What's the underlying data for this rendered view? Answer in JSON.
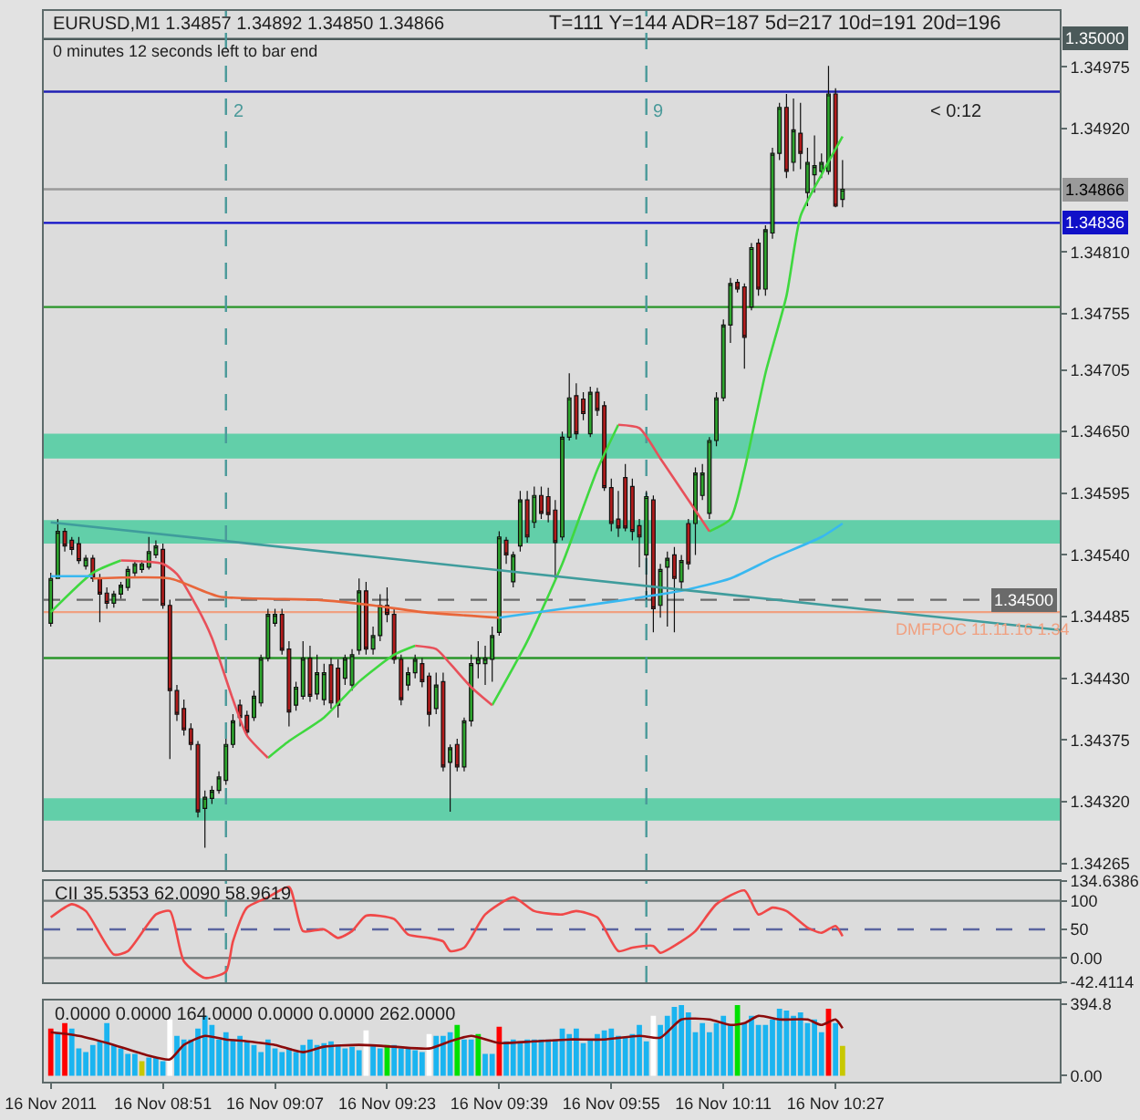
{
  "chart_data": [
    {
      "type": "candlestick",
      "title": "EURUSD,M1 1.34857 1.34892 1.34850 1.34866",
      "subtitle": "0 minutes 12 seconds left to bar end",
      "annotations": [
        "T=111 Y=144 ADR=187 5d=217 10d=191 20d=196",
        "< 0:12",
        {
          "text": "DMFPOC 11.11.16 1.34",
          "x": "2011-11-16T10:35",
          "y": 1.34485
        }
      ],
      "x": [
        "2011-11-16T08:35",
        "2011-11-16T08:36",
        "2011-11-16T08:37",
        "2011-11-16T08:38",
        "2011-11-16T08:39",
        "2011-11-16T08:40",
        "2011-11-16T08:41",
        "2011-11-16T08:42",
        "2011-11-16T08:43",
        "2011-11-16T08:44",
        "2011-11-16T08:45",
        "2011-11-16T08:46",
        "2011-11-16T08:47",
        "2011-11-16T08:48",
        "2011-11-16T08:49",
        "2011-11-16T08:50",
        "2011-11-16T08:51",
        "2011-11-16T08:52",
        "2011-11-16T08:53",
        "2011-11-16T08:54",
        "2011-11-16T08:55",
        "2011-11-16T08:56",
        "2011-11-16T08:57",
        "2011-11-16T08:58",
        "2011-11-16T08:59",
        "2011-11-16T09:00",
        "2011-11-16T09:01",
        "2011-11-16T09:02",
        "2011-11-16T09:03",
        "2011-11-16T09:04",
        "2011-11-16T09:05",
        "2011-11-16T09:06",
        "2011-11-16T09:07",
        "2011-11-16T09:08",
        "2011-11-16T09:09",
        "2011-11-16T09:10",
        "2011-11-16T09:11",
        "2011-11-16T09:12",
        "2011-11-16T09:13",
        "2011-11-16T09:14",
        "2011-11-16T09:15",
        "2011-11-16T09:16",
        "2011-11-16T09:17",
        "2011-11-16T09:18",
        "2011-11-16T09:19",
        "2011-11-16T09:20",
        "2011-11-16T09:21",
        "2011-11-16T09:22",
        "2011-11-16T09:23",
        "2011-11-16T09:24",
        "2011-11-16T09:25",
        "2011-11-16T09:26",
        "2011-11-16T09:27",
        "2011-11-16T09:28",
        "2011-11-16T09:29",
        "2011-11-16T09:30",
        "2011-11-16T09:31",
        "2011-11-16T09:32",
        "2011-11-16T09:33",
        "2011-11-16T09:34",
        "2011-11-16T09:35",
        "2011-11-16T09:36",
        "2011-11-16T09:37",
        "2011-11-16T09:38",
        "2011-11-16T09:39",
        "2011-11-16T09:40",
        "2011-11-16T09:41",
        "2011-11-16T09:42",
        "2011-11-16T09:43",
        "2011-11-16T09:44",
        "2011-11-16T09:45",
        "2011-11-16T09:46",
        "2011-11-16T09:47",
        "2011-11-16T09:48",
        "2011-11-16T09:49",
        "2011-11-16T09:50",
        "2011-11-16T09:51",
        "2011-11-16T09:52",
        "2011-11-16T09:53",
        "2011-11-16T09:54",
        "2011-11-16T09:55",
        "2011-11-16T09:56",
        "2011-11-16T09:57",
        "2011-11-16T09:58",
        "2011-11-16T09:59",
        "2011-11-16T10:00",
        "2011-11-16T10:01",
        "2011-11-16T10:02",
        "2011-11-16T10:03",
        "2011-11-16T10:04",
        "2011-11-16T10:05",
        "2011-11-16T10:06",
        "2011-11-16T10:07",
        "2011-11-16T10:08",
        "2011-11-16T10:09",
        "2011-11-16T10:10",
        "2011-11-16T10:11",
        "2011-11-16T10:12",
        "2011-11-16T10:13",
        "2011-11-16T10:14",
        "2011-11-16T10:15",
        "2011-11-16T10:16",
        "2011-11-16T10:17",
        "2011-11-16T10:18",
        "2011-11-16T10:19",
        "2011-11-16T10:20",
        "2011-11-16T10:21",
        "2011-11-16T10:22",
        "2011-11-16T10:23",
        "2011-11-16T10:24",
        "2011-11-16T10:25",
        "2011-11-16T10:26",
        "2011-11-16T10:27",
        "2011-11-16T10:28"
      ],
      "ohlc": [
        [
          1.34479,
          1.34524,
          1.34476,
          1.34519
        ],
        [
          1.34519,
          1.34572,
          1.34519,
          1.34561
        ],
        [
          1.34561,
          1.34564,
          1.34543,
          1.34548
        ],
        [
          1.34553,
          1.34556,
          1.3454,
          1.34545
        ],
        [
          1.3455,
          1.34556,
          1.34532,
          1.34535
        ],
        [
          1.3453,
          1.3454,
          1.34527,
          1.34537
        ],
        [
          1.34537,
          1.3454,
          1.34516,
          1.34519
        ],
        [
          1.34519,
          1.34523,
          1.3448,
          1.34505
        ],
        [
          1.34506,
          1.34511,
          1.34492,
          1.34497
        ],
        [
          1.34497,
          1.34508,
          1.34493,
          1.34505
        ],
        [
          1.34505,
          1.34516,
          1.34501,
          1.34513
        ],
        [
          1.34511,
          1.3453,
          1.34508,
          1.34527
        ],
        [
          1.34524,
          1.34535,
          1.34521,
          1.34532
        ],
        [
          1.34527,
          1.34535,
          1.34524,
          1.34532
        ],
        [
          1.34529,
          1.34556,
          1.34527,
          1.34543
        ],
        [
          1.3454,
          1.34553,
          1.34537,
          1.34548
        ],
        [
          1.34545,
          1.3455,
          1.34492,
          1.34495
        ],
        [
          1.34495,
          1.345,
          1.34358,
          1.34419
        ],
        [
          1.34419,
          1.34424,
          1.34392,
          1.34398
        ],
        [
          1.34403,
          1.34411,
          1.34379,
          1.34384
        ],
        [
          1.34385,
          1.3439,
          1.34366,
          1.34371
        ],
        [
          1.34371,
          1.34374,
          1.34306,
          1.34311
        ],
        [
          1.34314,
          1.3433,
          1.34279,
          1.34324
        ],
        [
          1.34323,
          1.34334,
          1.34318,
          1.3433
        ],
        [
          1.3433,
          1.34347,
          1.34327,
          1.34342
        ],
        [
          1.34339,
          1.34376,
          1.34335,
          1.34371
        ],
        [
          1.34371,
          1.34398,
          1.34368,
          1.34392
        ],
        [
          1.34406,
          1.34411,
          1.34387,
          1.34395
        ],
        [
          1.34397,
          1.34401,
          1.34379,
          1.34382
        ],
        [
          1.34395,
          1.34419,
          1.34392,
          1.34414
        ],
        [
          1.34408,
          1.34451,
          1.34405,
          1.34448
        ],
        [
          1.34448,
          1.34492,
          1.34445,
          1.34487
        ],
        [
          1.34479,
          1.34492,
          1.34476,
          1.34487
        ],
        [
          1.34487,
          1.34492,
          1.34451,
          1.34455
        ],
        [
          1.34456,
          1.34463,
          1.34387,
          1.344
        ],
        [
          1.34406,
          1.34427,
          1.34401,
          1.34422
        ],
        [
          1.34414,
          1.34463,
          1.34411,
          1.34448
        ],
        [
          1.34448,
          1.34459,
          1.34409,
          1.34414
        ],
        [
          1.34416,
          1.34451,
          1.34411,
          1.34435
        ],
        [
          1.34411,
          1.34443,
          1.34406,
          1.34435
        ],
        [
          1.34442,
          1.34448,
          1.34403,
          1.34408
        ],
        [
          1.34439,
          1.34447,
          1.34395,
          1.34406
        ],
        [
          1.3443,
          1.34451,
          1.34424,
          1.34448
        ],
        [
          1.34424,
          1.34456,
          1.34419,
          1.34451
        ],
        [
          1.34455,
          1.34519,
          1.34451,
          1.34508
        ],
        [
          1.34508,
          1.34516,
          1.34451,
          1.34456
        ],
        [
          1.34456,
          1.34476,
          1.34451,
          1.34468
        ],
        [
          1.34468,
          1.34505,
          1.34463,
          1.34495
        ],
        [
          1.34495,
          1.34511,
          1.3448,
          1.34487
        ],
        [
          1.34487,
          1.34492,
          1.34443,
          1.34447
        ],
        [
          1.34447,
          1.34451,
          1.34406,
          1.34411
        ],
        [
          1.34424,
          1.3444,
          1.34419,
          1.34435
        ],
        [
          1.34435,
          1.34451,
          1.3443,
          1.34447
        ],
        [
          1.34443,
          1.34448,
          1.34422,
          1.34427
        ],
        [
          1.34432,
          1.34435,
          1.34387,
          1.34398
        ],
        [
          1.34403,
          1.34435,
          1.34398,
          1.34424
        ],
        [
          1.34427,
          1.34435,
          1.34347,
          1.34351
        ],
        [
          1.34355,
          1.34371,
          1.34311,
          1.34368
        ],
        [
          1.34371,
          1.34376,
          1.34347,
          1.34351
        ],
        [
          1.34351,
          1.34395,
          1.34347,
          1.34392
        ],
        [
          1.34392,
          1.34451,
          1.34387,
          1.34443
        ],
        [
          1.34443,
          1.34463,
          1.3443,
          1.34448
        ],
        [
          1.34443,
          1.34459,
          1.34424,
          1.34448
        ],
        [
          1.34447,
          1.34476,
          1.34427,
          1.34468
        ],
        [
          1.34471,
          1.34561,
          1.34468,
          1.34556
        ],
        [
          1.34553,
          1.34556,
          1.34532,
          1.3454
        ],
        [
          1.34516,
          1.34543,
          1.34511,
          1.3454
        ],
        [
          1.34548,
          1.34597,
          1.34543,
          1.34589
        ],
        [
          1.34589,
          1.34597,
          1.34551,
          1.34556
        ],
        [
          1.34569,
          1.34601,
          1.34564,
          1.34593
        ],
        [
          1.34593,
          1.34601,
          1.34572,
          1.34577
        ],
        [
          1.34592,
          1.346,
          1.34569,
          1.34576
        ],
        [
          1.3458,
          1.34589,
          1.34519,
          1.34551
        ],
        [
          1.34556,
          1.3465,
          1.34553,
          1.34645
        ],
        [
          1.34645,
          1.34702,
          1.34642,
          1.3468
        ],
        [
          1.34682,
          1.34693,
          1.34643,
          1.34648
        ],
        [
          1.34679,
          1.34685,
          1.3466,
          1.34666
        ],
        [
          1.34648,
          1.3469,
          1.34645,
          1.34685
        ],
        [
          1.34685,
          1.34689,
          1.34664,
          1.34669
        ],
        [
          1.34673,
          1.34677,
          1.34597,
          1.346
        ],
        [
          1.346,
          1.34608,
          1.34561,
          1.34568
        ],
        [
          1.34572,
          1.34597,
          1.34556,
          1.34564
        ],
        [
          1.34609,
          1.34621,
          1.34561,
          1.34564
        ],
        [
          1.34601,
          1.34608,
          1.34553,
          1.34561
        ],
        [
          1.34566,
          1.34572,
          1.34529,
          1.34556
        ],
        [
          1.3454,
          1.34597,
          1.345,
          1.34592
        ],
        [
          1.34589,
          1.34593,
          1.34471,
          1.34492
        ],
        [
          1.34495,
          1.34532,
          1.34484,
          1.34527
        ],
        [
          1.34529,
          1.34543,
          1.34476,
          1.34537
        ],
        [
          1.3454,
          1.34547,
          1.34471,
          1.34519
        ],
        [
          1.34516,
          1.3454,
          1.34508,
          1.34535
        ],
        [
          1.34568,
          1.34572,
          1.34527,
          1.34532
        ],
        [
          1.34568,
          1.34618,
          1.3454,
          1.34613
        ],
        [
          1.34593,
          1.34621,
          1.34589,
          1.34613
        ],
        [
          1.34577,
          1.34645,
          1.34572,
          1.34642
        ],
        [
          1.34642,
          1.34685,
          1.34637,
          1.3468
        ],
        [
          1.3468,
          1.3475,
          1.34677,
          1.34745
        ],
        [
          1.34745,
          1.34787,
          1.34729,
          1.34782
        ],
        [
          1.34783,
          1.34786,
          1.34774,
          1.34777
        ],
        [
          1.34779,
          1.34782,
          1.34706,
          1.34734
        ],
        [
          1.34761,
          1.34818,
          1.34758,
          1.34814
        ],
        [
          1.34818,
          1.34822,
          1.34771,
          1.34777
        ],
        [
          1.34777,
          1.34834,
          1.34771,
          1.3483
        ],
        [
          1.34827,
          1.34903,
          1.34822,
          1.34898
        ],
        [
          1.34898,
          1.34943,
          1.34892,
          1.34939
        ],
        [
          1.34939,
          1.34951,
          1.34876,
          1.34882
        ],
        [
          1.3489,
          1.34947,
          1.34882,
          1.34919
        ],
        [
          1.34916,
          1.34943,
          1.34884,
          1.34898
        ],
        [
          1.34863,
          1.34903,
          1.34851,
          1.3489
        ],
        [
          1.34879,
          1.34914,
          1.34863,
          1.34887
        ],
        [
          1.34882,
          1.34898,
          1.34876,
          1.3489
        ],
        [
          1.34882,
          1.34976,
          1.34879,
          1.34951
        ],
        [
          1.34951,
          1.34956,
          1.3485,
          1.34851
        ],
        [
          1.34857,
          1.34892,
          1.3485,
          1.34866
        ]
      ],
      "colors": [
        "#2ea62e",
        "#2ea62e",
        "#b21c1c",
        "#b21c1c",
        "#b21c1c",
        "#2ea62e",
        "#b21c1c",
        "#b21c1c",
        "#b21c1c",
        "#2ea62e",
        "#2ea62e",
        "#2ea62e",
        "#2ea62e",
        "#2ea62e",
        "#2ea62e",
        "#2ea62e",
        "#b21c1c",
        "#b21c1c",
        "#b21c1c",
        "#b21c1c",
        "#b21c1c",
        "#b21c1c",
        "#2ea62e",
        "#2ea62e",
        "#2ea62e",
        "#2ea62e",
        "#2ea62e",
        "#b21c1c",
        "#b21c1c",
        "#2ea62e",
        "#2ea62e",
        "#2ea62e",
        "#2ea62e",
        "#b21c1c",
        "#b21c1c",
        "#2ea62e",
        "#2ea62e",
        "#b21c1c",
        "#2ea62e",
        "#2ea62e",
        "#b21c1c",
        "#b21c1c",
        "#2ea62e",
        "#2ea62e",
        "#2ea62e",
        "#b21c1c",
        "#2ea62e",
        "#2ea62e",
        "#b21c1c",
        "#b21c1c",
        "#b21c1c",
        "#2ea62e",
        "#2ea62e",
        "#b21c1c",
        "#b21c1c",
        "#2ea62e",
        "#b21c1c",
        "#2ea62e",
        "#b21c1c",
        "#2ea62e",
        "#2ea62e",
        "#2ea62e",
        "#2ea62e",
        "#2ea62e",
        "#2ea62e",
        "#b21c1c",
        "#2ea62e",
        "#2ea62e",
        "#b21c1c",
        "#2ea62e",
        "#b21c1c",
        "#b21c1c",
        "#b21c1c",
        "#2ea62e",
        "#2ea62e",
        "#b21c1c",
        "#b21c1c",
        "#2ea62e",
        "#b21c1c",
        "#b21c1c",
        "#b21c1c",
        "#b21c1c",
        "#b21c1c",
        "#b21c1c",
        "#b21c1c",
        "#2ea62e",
        "#b21c1c",
        "#2ea62e",
        "#2ea62e",
        "#b21c1c",
        "#2ea62e",
        "#b21c1c",
        "#2ea62e",
        "#2ea62e",
        "#2ea62e",
        "#2ea62e",
        "#2ea62e",
        "#2ea62e",
        "#b21c1c",
        "#b21c1c",
        "#2ea62e",
        "#b21c1c",
        "#2ea62e",
        "#2ea62e",
        "#2ea62e",
        "#b21c1c",
        "#2ea62e",
        "#b21c1c",
        "#2ea62e",
        "#2ea62e",
        "#2ea62e",
        "#2ea62e",
        "#b21c1c",
        "#2ea62e"
      ],
      "series": [
        {
          "type": "line",
          "color": "#3fd83f",
          "x": [
            "2011-11-16T08:35",
            "2011-11-16T08:41",
            "2011-11-16T08:45",
            "2011-11-16T08:46",
            "2011-11-16T09:06",
            "2011-11-16T09:09",
            "2011-11-16T09:14",
            "2011-11-16T09:19",
            "2011-11-16T09:24",
            "2011-11-16T09:27",
            "2011-11-16T09:28",
            "2011-11-16T09:38",
            "2011-11-16T09:43",
            "2011-11-16T09:48",
            "2011-11-16T09:53",
            "2011-11-16T09:56",
            "2011-11-16T09:57",
            "2011-11-16T10:09",
            "2011-11-16T10:12",
            "2011-11-16T10:14",
            "2011-11-16T10:17",
            "2011-11-16T10:20",
            "2011-11-16T10:22",
            "2011-11-16T10:25",
            "2011-11-16T10:28"
          ],
          "values": [
            1.34489,
            1.34524,
            1.34535,
            null,
            1.34359,
            1.34374,
            1.34395,
            1.34427,
            1.34451,
            1.34459,
            null,
            1.34406,
            1.34463,
            1.34532,
            1.34616,
            1.34656,
            null,
            1.34561,
            1.34572,
            1.34616,
            1.34702,
            1.34771,
            1.34842,
            1.34879,
            1.34913
          ]
        },
        {
          "type": "line",
          "color": "#e8505a",
          "x": [
            "2011-11-16T08:45",
            "2011-11-16T08:51",
            "2011-11-16T08:53",
            "2011-11-16T08:56",
            "2011-11-16T08:58",
            "2011-11-16T09:01",
            "2011-11-16T09:03",
            "2011-11-16T09:06",
            "2011-11-16T09:07",
            "2011-11-16T09:27",
            "2011-11-16T09:30",
            "2011-11-16T09:32",
            "2011-11-16T09:35",
            "2011-11-16T09:38",
            "2011-11-16T09:39",
            "2011-11-16T09:56",
            "2011-11-16T09:59",
            "2011-11-16T10:02",
            "2011-11-16T10:06",
            "2011-11-16T10:09"
          ],
          "values": [
            1.34535,
            1.34532,
            1.34523,
            1.34492,
            1.34466,
            1.34411,
            1.34379,
            1.34359,
            null,
            1.34459,
            1.34456,
            1.34443,
            1.34422,
            1.34406,
            null,
            1.34656,
            1.34653,
            1.34626,
            1.34589,
            1.34561
          ]
        },
        {
          "type": "line",
          "color": "#e8663a",
          "x": [
            "2011-11-16T08:41",
            "2011-11-16T08:52",
            "2011-11-16T08:59",
            "2011-11-16T09:13",
            "2011-11-16T09:21",
            "2011-11-16T09:28",
            "2011-11-16T09:39"
          ],
          "values": [
            1.34519,
            1.34519,
            1.34503,
            1.345,
            1.34495,
            1.34489,
            1.34484
          ]
        },
        {
          "type": "line",
          "color": "#38b8f0",
          "x": [
            "2011-11-16T08:35",
            "2011-11-16T08:41",
            "2011-11-16T08:42",
            "2011-11-16T09:39",
            "2011-11-16T09:48",
            "2011-11-16T09:57",
            "2011-11-16T10:05",
            "2011-11-16T10:12",
            "2011-11-16T10:18",
            "2011-11-16T10:25",
            "2011-11-16T10:28"
          ],
          "values": [
            1.34521,
            1.34521,
            null,
            1.34484,
            1.34492,
            1.345,
            1.34508,
            1.34519,
            1.34537,
            1.34556,
            1.34568
          ]
        },
        {
          "type": "line",
          "color": "#3f9c9c",
          "x": [
            "2011-11-16T08:35",
            "2011-11-16T10:59"
          ],
          "values": [
            1.34569,
            1.34473
          ]
        }
      ],
      "xlim": [
        "2011-11-16T08:34",
        "2011-11-16T10:59"
      ],
      "ylim": [
        1.34259,
        1.35025
      ],
      "yticks": [
        1.34975,
        {
          "value": 1.3492,
          "label": "1.34920"
        },
        {
          "value": 1.3481,
          "label": "1.34810"
        },
        1.34755,
        1.34705,
        {
          "value": 1.3465,
          "label": "1.34650"
        },
        1.34595,
        {
          "value": 1.3454,
          "label": "1.34540"
        },
        1.34485,
        {
          "value": 1.3443,
          "label": "1.34430"
        },
        1.34375,
        {
          "value": 1.3432,
          "label": "1.34320"
        },
        1.34265
      ],
      "tick_labels": "y",
      "ref_lines": [
        {
          "axis": "y",
          "value": 1.35,
          "label": "1.35000",
          "color": "#4b5a5a"
        },
        {
          "axis": "y",
          "value": 1.34953,
          "color": "#2020b4"
        },
        {
          "axis": "y",
          "value": 1.34866,
          "label": "1.34866",
          "color": "#9a9a9a"
        },
        {
          "axis": "y",
          "value": 1.34836,
          "label": "1.34836",
          "color": "#1010c8"
        },
        {
          "axis": "y",
          "value": 1.34761,
          "color": "#2a962a"
        },
        {
          "axis": "y",
          "value": 1.345,
          "label": "1.34500",
          "color": "#6a6a6a",
          "line_style": "dashed"
        },
        {
          "axis": "y",
          "value": 1.34489,
          "color": "#f0a080"
        },
        {
          "axis": "y",
          "value": 1.34448,
          "color": "#2a962a"
        },
        {
          "axis": "x",
          "value": "2011-11-16T09:00",
          "label": "2",
          "color": "#4a9a9a",
          "line_style": "dashed"
        },
        {
          "axis": "x",
          "value": "2011-11-16T10:00",
          "label": "9",
          "color": "#4a9a9a",
          "line_style": "dashed"
        }
      ],
      "bands": [
        {
          "axis": "y",
          "from": 1.34626,
          "to": 1.34648,
          "color": "#62cfa9"
        },
        {
          "axis": "y",
          "from": 1.3455,
          "to": 1.34571,
          "color": "#62cfa9"
        },
        {
          "axis": "y",
          "from": 1.34303,
          "to": 1.34323,
          "color": "#62cfa9"
        }
      ]
    },
    {
      "type": "line",
      "title": "CII 35.5353 62.0090 58.9619",
      "x": [
        "2011-11-16T08:35",
        "2011-11-16T08:38",
        "2011-11-16T08:40",
        "2011-11-16T08:44",
        "2011-11-16T08:46",
        "2011-11-16T08:50",
        "2011-11-16T08:52",
        "2011-11-16T08:54",
        "2011-11-16T08:57",
        "2011-11-16T09:00",
        "2011-11-16T09:01",
        "2011-11-16T09:03",
        "2011-11-16T09:06",
        "2011-11-16T09:09",
        "2011-11-16T09:11",
        "2011-11-16T09:14",
        "2011-11-16T09:16",
        "2011-11-16T09:18",
        "2011-11-16T09:20",
        "2011-11-16T09:24",
        "2011-11-16T09:26",
        "2011-11-16T09:29",
        "2011-11-16T09:31",
        "2011-11-16T09:32",
        "2011-11-16T09:34",
        "2011-11-16T09:37",
        "2011-11-16T09:41",
        "2011-11-16T09:44",
        "2011-11-16T09:48",
        "2011-11-16T09:50",
        "2011-11-16T09:53",
        "2011-11-16T09:56",
        "2011-11-16T09:58",
        "2011-11-16T10:01",
        "2011-11-16T10:02",
        "2011-11-16T10:05",
        "2011-11-16T10:07",
        "2011-11-16T10:10",
        "2011-11-16T10:14",
        "2011-11-16T10:16",
        "2011-11-16T10:18",
        "2011-11-16T10:20",
        "2011-11-16T10:23",
        "2011-11-16T10:25",
        "2011-11-16T10:27",
        "2011-11-16T10:28"
      ],
      "series": [
        {
          "color": "#f04848",
          "values": [
            71,
            94,
            82,
            6,
            12,
            76,
            82,
            -6,
            -35,
            -24,
            29,
            88,
            106,
            124,
            47,
            50,
            35,
            47,
            74,
            68,
            41,
            35,
            29,
            12,
            18,
            76,
            106,
            82,
            76,
            82,
            71,
            12,
            18,
            21,
            9,
            29,
            47,
            94,
            118,
            76,
            88,
            82,
            53,
            44,
            56,
            38
          ]
        }
      ],
      "xlim": [
        "2011-11-16T08:34",
        "2011-11-16T10:59"
      ],
      "ylim": [
        -42.4114,
        134.6386
      ],
      "yticks": [
        134.6386,
        100,
        50,
        {
          "value": 0,
          "label": "0.00"
        },
        -42.4114
      ],
      "tick_labels": "y",
      "ref_lines": [
        {
          "axis": "y",
          "value": 100,
          "color": "#6e7878"
        },
        {
          "axis": "y",
          "value": 50,
          "color": "#5a64a0",
          "line_style": "dashed"
        },
        {
          "axis": "y",
          "value": 0,
          "color": "#6e7878"
        },
        {
          "axis": "x",
          "value": "2011-11-16T09:00",
          "color": "#4a9a9a",
          "line_style": "dashed"
        },
        {
          "axis": "x",
          "value": "2011-11-16T10:00",
          "color": "#4a9a9a",
          "line_style": "dashed"
        }
      ]
    },
    {
      "type": "bar",
      "title": "0.0000 0.0000 164.0000 0.0000 0.0000 262.0000",
      "x": [
        "2011-11-16T08:35",
        "2011-11-16T08:36",
        "2011-11-16T08:37",
        "2011-11-16T08:38",
        "2011-11-16T08:39",
        "2011-11-16T08:40",
        "2011-11-16T08:41",
        "2011-11-16T08:42",
        "2011-11-16T08:43",
        "2011-11-16T08:44",
        "2011-11-16T08:45",
        "2011-11-16T08:46",
        "2011-11-16T08:47",
        "2011-11-16T08:48",
        "2011-11-16T08:49",
        "2011-11-16T08:50",
        "2011-11-16T08:51",
        "2011-11-16T08:52",
        "2011-11-16T08:53",
        "2011-11-16T08:54",
        "2011-11-16T08:55",
        "2011-11-16T08:56",
        "2011-11-16T08:57",
        "2011-11-16T08:58",
        "2011-11-16T08:59",
        "2011-11-16T09:00",
        "2011-11-16T09:01",
        "2011-11-16T09:02",
        "2011-11-16T09:03",
        "2011-11-16T09:04",
        "2011-11-16T09:05",
        "2011-11-16T09:06",
        "2011-11-16T09:07",
        "2011-11-16T09:08",
        "2011-11-16T09:09",
        "2011-11-16T09:10",
        "2011-11-16T09:11",
        "2011-11-16T09:12",
        "2011-11-16T09:13",
        "2011-11-16T09:14",
        "2011-11-16T09:15",
        "2011-11-16T09:16",
        "2011-11-16T09:17",
        "2011-11-16T09:18",
        "2011-11-16T09:19",
        "2011-11-16T09:20",
        "2011-11-16T09:21",
        "2011-11-16T09:22",
        "2011-11-16T09:23",
        "2011-11-16T09:24",
        "2011-11-16T09:25",
        "2011-11-16T09:26",
        "2011-11-16T09:27",
        "2011-11-16T09:28",
        "2011-11-16T09:29",
        "2011-11-16T09:30",
        "2011-11-16T09:31",
        "2011-11-16T09:32",
        "2011-11-16T09:33",
        "2011-11-16T09:34",
        "2011-11-16T09:35",
        "2011-11-16T09:36",
        "2011-11-16T09:37",
        "2011-11-16T09:38",
        "2011-11-16T09:39",
        "2011-11-16T09:40",
        "2011-11-16T09:41",
        "2011-11-16T09:42",
        "2011-11-16T09:43",
        "2011-11-16T09:44",
        "2011-11-16T09:45",
        "2011-11-16T09:46",
        "2011-11-16T09:47",
        "2011-11-16T09:48",
        "2011-11-16T09:49",
        "2011-11-16T09:50",
        "2011-11-16T09:51",
        "2011-11-16T09:52",
        "2011-11-16T09:53",
        "2011-11-16T09:54",
        "2011-11-16T09:55",
        "2011-11-16T09:56",
        "2011-11-16T09:57",
        "2011-11-16T09:58",
        "2011-11-16T09:59",
        "2011-11-16T10:00",
        "2011-11-16T10:01",
        "2011-11-16T10:02",
        "2011-11-16T10:03",
        "2011-11-16T10:04",
        "2011-11-16T10:05",
        "2011-11-16T10:06",
        "2011-11-16T10:07",
        "2011-11-16T10:08",
        "2011-11-16T10:09",
        "2011-11-16T10:10",
        "2011-11-16T10:11",
        "2011-11-16T10:12",
        "2011-11-16T10:13",
        "2011-11-16T10:14",
        "2011-11-16T10:15",
        "2011-11-16T10:16",
        "2011-11-16T10:17",
        "2011-11-16T10:18",
        "2011-11-16T10:19",
        "2011-11-16T10:20",
        "2011-11-16T10:21",
        "2011-11-16T10:22",
        "2011-11-16T10:23",
        "2011-11-16T10:24",
        "2011-11-16T10:25",
        "2011-11-16T10:26",
        "2011-11-16T10:27",
        "2011-11-16T10:28"
      ],
      "values": [
        260,
        240,
        290,
        260,
        150,
        130,
        170,
        190,
        290,
        170,
        150,
        120,
        120,
        80,
        100,
        100,
        80,
        310,
        220,
        200,
        200,
        260,
        330,
        280,
        200,
        240,
        200,
        220,
        190,
        170,
        130,
        200,
        150,
        130,
        150,
        130,
        170,
        200,
        170,
        180,
        190,
        170,
        150,
        160,
        140,
        250,
        170,
        150,
        170,
        170,
        150,
        150,
        140,
        130,
        230,
        220,
        220,
        240,
        280,
        200,
        200,
        230,
        120,
        120,
        270,
        190,
        200,
        190,
        200,
        200,
        200,
        200,
        200,
        260,
        230,
        260,
        180,
        200,
        230,
        250,
        260,
        220,
        210,
        230,
        280,
        190,
        330,
        280,
        330,
        380,
        390,
        350,
        240,
        290,
        240,
        290,
        330,
        280,
        390,
        290,
        330,
        280,
        280,
        310,
        370,
        360,
        330,
        350,
        290,
        310,
        240,
        370,
        290,
        164
      ],
      "colors": [
        "#ff0000",
        "#1ab4f0",
        "#ff0000",
        "#1ab4f0",
        "#1ab4f0",
        "#1ab4f0",
        "#1ab4f0",
        "#1ab4f0",
        "#1ab4f0",
        "#1ab4f0",
        "#1ab4f0",
        "#1ab4f0",
        "#1ab4f0",
        "#c8c800",
        "#1ab4f0",
        "#1ab4f0",
        "#1ab4f0",
        "#ffffff",
        "#1ab4f0",
        "#1ab4f0",
        "#1ab4f0",
        "#1ab4f0",
        "#1ab4f0",
        "#1ab4f0",
        "#1ab4f0",
        "#1ab4f0",
        "#1ab4f0",
        "#1ab4f0",
        "#1ab4f0",
        "#1ab4f0",
        "#1ab4f0",
        "#1ab4f0",
        "#1ab4f0",
        "#1ab4f0",
        "#1ab4f0",
        "#1ab4f0",
        "#1ab4f0",
        "#1ab4f0",
        "#1ab4f0",
        "#1ab4f0",
        "#1ab4f0",
        "#1ab4f0",
        "#1ab4f0",
        "#1ab4f0",
        "#1ab4f0",
        "#ffffff",
        "#1ab4f0",
        "#1ab4f0",
        "#00e000",
        "#1ab4f0",
        "#1ab4f0",
        "#1ab4f0",
        "#1ab4f0",
        "#1ab4f0",
        "#ffffff",
        "#1ab4f0",
        "#1ab4f0",
        "#1ab4f0",
        "#00e000",
        "#1ab4f0",
        "#1ab4f0",
        "#00e000",
        "#1ab4f0",
        "#1ab4f0",
        "#ff0000",
        "#1ab4f0",
        "#1ab4f0",
        "#1ab4f0",
        "#1ab4f0",
        "#1ab4f0",
        "#1ab4f0",
        "#1ab4f0",
        "#1ab4f0",
        "#1ab4f0",
        "#1ab4f0",
        "#1ab4f0",
        "#1ab4f0",
        "#1ab4f0",
        "#1ab4f0",
        "#1ab4f0",
        "#1ab4f0",
        "#1ab4f0",
        "#1ab4f0",
        "#1ab4f0",
        "#1ab4f0",
        "#1ab4f0",
        "#ffffff",
        "#1ab4f0",
        "#1ab4f0",
        "#1ab4f0",
        "#1ab4f0",
        "#1ab4f0",
        "#1ab4f0",
        "#1ab4f0",
        "#1ab4f0",
        "#1ab4f0",
        "#1ab4f0",
        "#1ab4f0",
        "#00e000",
        "#1ab4f0",
        "#1ab4f0",
        "#1ab4f0",
        "#1ab4f0",
        "#1ab4f0",
        "#1ab4f0",
        "#1ab4f0",
        "#1ab4f0",
        "#1ab4f0",
        "#1ab4f0",
        "#1ab4f0",
        "#1ab4f0",
        "#ff0000",
        "#1ab4f0",
        "#c8c800"
      ],
      "series": [
        {
          "type": "line",
          "color": "#8b0a0a",
          "x": [
            "2011-11-16T08:35",
            "2011-11-16T08:39",
            "2011-11-16T08:44",
            "2011-11-16T08:49",
            "2011-11-16T08:52",
            "2011-11-16T08:54",
            "2011-11-16T08:57",
            "2011-11-16T09:00",
            "2011-11-16T09:03",
            "2011-11-16T09:07",
            "2011-11-16T09:11",
            "2011-11-16T09:14",
            "2011-11-16T09:19",
            "2011-11-16T09:24",
            "2011-11-16T09:29",
            "2011-11-16T09:32",
            "2011-11-16T09:35",
            "2011-11-16T09:39",
            "2011-11-16T09:44",
            "2011-11-16T09:49",
            "2011-11-16T09:54",
            "2011-11-16T09:59",
            "2011-11-16T10:02",
            "2011-11-16T10:05",
            "2011-11-16T10:09",
            "2011-11-16T10:12",
            "2011-11-16T10:14",
            "2011-11-16T10:16",
            "2011-11-16T10:19",
            "2011-11-16T10:23",
            "2011-11-16T10:25",
            "2011-11-16T10:27",
            "2011-11-16T10:28"
          ],
          "values": [
            240,
            220,
            170,
            110,
            90,
            170,
            220,
            200,
            190,
            170,
            130,
            160,
            170,
            160,
            150,
            190,
            220,
            180,
            190,
            200,
            200,
            220,
            210,
            310,
            310,
            280,
            290,
            330,
            310,
            310,
            280,
            310,
            262
          ]
        }
      ],
      "xlim": [
        "2011-11-16T08:34",
        "2011-11-16T10:59"
      ],
      "xticks": [
        {
          "value": "2011-11-16T08:35",
          "label": "16 Nov 2011"
        },
        {
          "value": "2011-11-16T08:51",
          "label": "16 Nov 08:51"
        },
        {
          "value": "2011-11-16T09:07",
          "label": "16 Nov 09:07"
        },
        {
          "value": "2011-11-16T09:23",
          "label": "16 Nov 09:23"
        },
        {
          "value": "2011-11-16T09:39",
          "label": "16 Nov 09:39"
        },
        {
          "value": "2011-11-16T09:55",
          "label": "16 Nov 09:55"
        },
        {
          "value": "2011-11-16T10:11",
          "label": "16 Nov 10:11"
        },
        {
          "value": "2011-11-16T10:27",
          "label": "16 Nov 10:27"
        }
      ],
      "ylim": [
        -33,
        416
      ],
      "yticks": [
        394.8,
        {
          "value": 0,
          "label": "0.00"
        }
      ]
    }
  ]
}
